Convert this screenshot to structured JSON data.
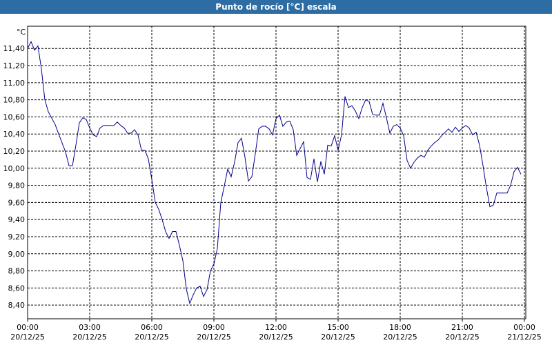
{
  "chart_data": {
    "type": "line",
    "title": "Punto de rocío [°C] escala",
    "y_unit": "°C",
    "x": [
      "20/12/25 00:00",
      "20/12/25 00:10",
      "20/12/25 00:20",
      "20/12/25 00:30",
      "20/12/25 00:40",
      "20/12/25 00:50",
      "20/12/25 01:00",
      "20/12/25 01:20",
      "20/12/25 01:30",
      "20/12/25 01:50",
      "20/12/25 02:00",
      "20/12/25 02:10",
      "20/12/25 02:20",
      "20/12/25 02:30",
      "20/12/25 02:40",
      "20/12/25 02:50",
      "20/12/25 03:00",
      "20/12/25 03:10",
      "20/12/25 03:20",
      "20/12/25 03:30",
      "20/12/25 03:40",
      "20/12/25 04:00",
      "20/12/25 04:10",
      "20/12/25 04:20",
      "20/12/25 04:30",
      "20/12/25 04:40",
      "20/12/25 04:50",
      "20/12/25 05:00",
      "20/12/25 05:10",
      "20/12/25 05:20",
      "20/12/25 05:30",
      "20/12/25 05:40",
      "20/12/25 05:50",
      "20/12/25 06:00",
      "20/12/25 06:10",
      "20/12/25 06:20",
      "20/12/25 06:30",
      "20/12/25 06:40",
      "20/12/25 06:50",
      "20/12/25 07:00",
      "20/12/25 07:10",
      "20/12/25 07:20",
      "20/12/25 07:30",
      "20/12/25 07:40",
      "20/12/25 07:50",
      "20/12/25 08:00",
      "20/12/25 08:10",
      "20/12/25 08:20",
      "20/12/25 08:30",
      "20/12/25 08:40",
      "20/12/25 08:50",
      "20/12/25 09:00",
      "20/12/25 09:10",
      "20/12/25 09:20",
      "20/12/25 09:30",
      "20/12/25 09:40",
      "20/12/25 09:50",
      "20/12/25 10:00",
      "20/12/25 10:10",
      "20/12/25 10:20",
      "20/12/25 10:30",
      "20/12/25 10:40",
      "20/12/25 10:50",
      "20/12/25 11:00",
      "20/12/25 11:10",
      "20/12/25 11:20",
      "20/12/25 11:30",
      "20/12/25 11:40",
      "20/12/25 11:50",
      "20/12/25 12:00",
      "20/12/25 12:10",
      "20/12/25 12:20",
      "20/12/25 12:30",
      "20/12/25 12:40",
      "20/12/25 12:50",
      "20/12/25 13:00",
      "20/12/25 13:10",
      "20/12/25 13:20",
      "20/12/25 13:30",
      "20/12/25 13:40",
      "20/12/25 13:50",
      "20/12/25 14:00",
      "20/12/25 14:10",
      "20/12/25 14:20",
      "20/12/25 14:30",
      "20/12/25 14:40",
      "20/12/25 14:50",
      "20/12/25 15:00",
      "20/12/25 15:10",
      "20/12/25 15:20",
      "20/12/25 15:30",
      "20/12/25 15:40",
      "20/12/25 15:50",
      "20/12/25 16:00",
      "20/12/25 16:10",
      "20/12/25 16:20",
      "20/12/25 16:30",
      "20/12/25 16:40",
      "20/12/25 16:50",
      "20/12/25 17:00",
      "20/12/25 17:10",
      "20/12/25 17:20",
      "20/12/25 17:30",
      "20/12/25 17:40",
      "20/12/25 17:50",
      "20/12/25 18:00",
      "20/12/25 18:10",
      "20/12/25 18:20",
      "20/12/25 18:30",
      "20/12/25 18:40",
      "20/12/25 18:50",
      "20/12/25 19:00",
      "20/12/25 19:10",
      "20/12/25 19:20",
      "20/12/25 19:30",
      "20/12/25 19:40",
      "20/12/25 19:50",
      "20/12/25 20:00",
      "20/12/25 20:10",
      "20/12/25 20:20",
      "20/12/25 20:30",
      "20/12/25 20:40",
      "20/12/25 20:50",
      "20/12/25 21:00",
      "20/12/25 21:10",
      "20/12/25 21:20",
      "20/12/25 21:30",
      "20/12/25 21:40",
      "20/12/25 21:50",
      "20/12/25 22:00",
      "20/12/25 22:10",
      "20/12/25 22:20",
      "20/12/25 22:30",
      "20/12/25 22:40",
      "20/12/25 22:50",
      "20/12/25 23:00",
      "20/12/25 23:10",
      "20/12/25 23:20",
      "20/12/25 23:30",
      "20/12/25 23:40",
      "20/12/25 23:50"
    ],
    "series": [
      {
        "color": "#00008b",
        "values": [
          11.4,
          11.48,
          11.38,
          11.43,
          11.16,
          10.8,
          10.66,
          10.51,
          10.4,
          10.19,
          10.03,
          10.03,
          10.27,
          10.53,
          10.59,
          10.57,
          10.47,
          10.39,
          10.37,
          10.47,
          10.5,
          10.5,
          10.5,
          10.54,
          10.5,
          10.47,
          10.41,
          10.41,
          10.45,
          10.39,
          10.21,
          10.21,
          10.11,
          9.87,
          9.6,
          9.52,
          9.4,
          9.26,
          9.18,
          9.26,
          9.26,
          9.1,
          8.92,
          8.59,
          8.42,
          8.52,
          8.6,
          8.62,
          8.5,
          8.58,
          8.8,
          8.88,
          9.06,
          9.6,
          9.79,
          9.99,
          9.9,
          10.07,
          10.3,
          10.35,
          10.13,
          9.85,
          9.9,
          10.17,
          10.46,
          10.49,
          10.49,
          10.46,
          10.39,
          10.58,
          10.62,
          10.49,
          10.54,
          10.55,
          10.45,
          10.15,
          10.23,
          10.31,
          9.89,
          9.87,
          10.11,
          9.84,
          10.08,
          9.93,
          10.27,
          10.26,
          10.38,
          10.21,
          10.39,
          10.84,
          10.71,
          10.73,
          10.67,
          10.58,
          10.71,
          10.8,
          10.78,
          10.63,
          10.62,
          10.62,
          10.76,
          10.59,
          10.41,
          10.49,
          10.51,
          10.47,
          10.38,
          10.09,
          10.0,
          10.07,
          10.12,
          10.15,
          10.13,
          10.21,
          10.26,
          10.3,
          10.33,
          10.38,
          10.42,
          10.46,
          10.42,
          10.48,
          10.43,
          10.47,
          10.5,
          10.47,
          10.39,
          10.42,
          10.27,
          10.03,
          9.77,
          9.55,
          9.57,
          9.71,
          9.71,
          9.71,
          9.71,
          9.8,
          9.96,
          10.01,
          9.93
        ]
      }
    ],
    "xlim": [
      "20/12/25 00:00",
      "21/12/25 00:04"
    ],
    "xticks": [
      {
        "value": "20/12/25 00:00",
        "label": "00:00\n20/12/25"
      },
      {
        "value": "20/12/25 03:00",
        "label": "03:00\n20/12/25"
      },
      {
        "value": "20/12/25 06:00",
        "label": "06:00\n20/12/25"
      },
      {
        "value": "20/12/25 09:00",
        "label": "09:00\n20/12/25"
      },
      {
        "value": "20/12/25 12:00",
        "label": "12:00\n20/12/25"
      },
      {
        "value": "20/12/25 15:00",
        "label": "15:00\n20/12/25"
      },
      {
        "value": "20/12/25 18:00",
        "label": "18:00\n20/12/25"
      },
      {
        "value": "20/12/25 21:00",
        "label": "21:00\n20/12/25"
      },
      {
        "value": "21/12/25 00:00",
        "label": "00:00\n21/12/25"
      }
    ],
    "ylim": [
      8.24,
      11.66
    ],
    "yticks": [
      {
        "value": 8.4,
        "label": "8,40"
      },
      {
        "value": 8.6,
        "label": "8,60"
      },
      {
        "value": 8.8,
        "label": "8,80"
      },
      {
        "value": 9.0,
        "label": "9,00"
      },
      {
        "value": 9.2,
        "label": "9,20"
      },
      {
        "value": 9.4,
        "label": "9,40"
      },
      {
        "value": 9.6,
        "label": "9,60"
      },
      {
        "value": 9.8,
        "label": "9,80"
      },
      {
        "value": 10.0,
        "label": "10,00"
      },
      {
        "value": 10.2,
        "label": "10,20"
      },
      {
        "value": 10.4,
        "label": "10,40"
      },
      {
        "value": 10.6,
        "label": "10,60"
      },
      {
        "value": 10.8,
        "label": "10,80"
      },
      {
        "value": 11.0,
        "label": "11,00"
      },
      {
        "value": 11.2,
        "label": "11,20"
      },
      {
        "value": 11.4,
        "label": "11,40"
      }
    ],
    "grid": true
  }
}
